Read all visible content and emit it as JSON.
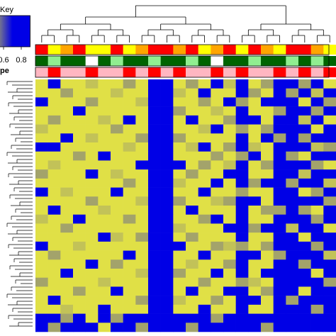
{
  "chart_data": {
    "type": "heatmap",
    "key_title": "Key",
    "legend_title": "pe",
    "zlim": [
      0.2,
      0.9
    ],
    "zticks": [
      0.6,
      0.8
    ],
    "colorscale": [
      [
        0.2,
        "#ffff33"
      ],
      [
        0.5,
        "#a3a36b"
      ],
      [
        0.7,
        "#0000e6"
      ]
    ],
    "column_colors": [
      [
        "#ff0000",
        "#ffff00",
        "#ffa500",
        "#ff0000",
        "#ffff00",
        "#ffff00",
        "#ff0000",
        "#ffff00",
        "#ffa500",
        "#ff0000",
        "#ff0000",
        "#ffa500",
        "#ff0000",
        "#ffff00",
        "#ffa500",
        "#ff0000",
        "#ffff00",
        "#ff0000",
        "#ffa500",
        "#ffff00",
        "#ff0000",
        "#ff0000",
        "#ffa500",
        "#ffff00"
      ],
      [
        "#006400",
        "#90ee90",
        "#006400",
        "#006400",
        "#ffffff",
        "#006400",
        "#90ee90",
        "#006400",
        "#006400",
        "#90ee90",
        "#006400",
        "#006400",
        "#90ee90",
        "#006400",
        "#ffffff",
        "#006400",
        "#006400",
        "#90ee90",
        "#006400",
        "#006400",
        "#90ee90",
        "#006400",
        "#90ee90",
        "#006400"
      ],
      [
        "#ffb6c1",
        "#ff0000",
        "#ffb6c1",
        "#ffb6c1",
        "#ff0000",
        "#ffb6c1",
        "#ffb6c1",
        "#ff0000",
        "#ffb6c1",
        "#ff0000",
        "#ffb6c1",
        "#ff0000",
        "#ffb6c1",
        "#ffb6c1",
        "#ff0000",
        "#ffb6c1",
        "#ff0000",
        "#ffb6c1",
        "#ffb6c1",
        "#ff0000",
        "#ffb6c1",
        "#ff0000",
        "#ffb6c1",
        "#ff0000"
      ]
    ],
    "values": [
      [
        0.3,
        0.8,
        0.3,
        0.3,
        0.4,
        0.3,
        0.3,
        0.5,
        0.3,
        0.8,
        0.8,
        0.3,
        0.5,
        0.3,
        0.8,
        0.4,
        0.8,
        0.3,
        0.5,
        0.8,
        0.8,
        0.5,
        0.8,
        0.3
      ],
      [
        0.3,
        0.3,
        0.5,
        0.3,
        0.3,
        0.3,
        0.4,
        0.3,
        0.3,
        0.8,
        0.8,
        0.4,
        0.3,
        0.8,
        0.3,
        0.3,
        0.8,
        0.5,
        0.3,
        0.8,
        0.5,
        0.8,
        0.4,
        0.8
      ],
      [
        0.8,
        0.3,
        0.3,
        0.3,
        0.5,
        0.3,
        0.3,
        0.3,
        0.4,
        0.8,
        0.8,
        0.3,
        0.3,
        0.5,
        0.3,
        0.8,
        0.5,
        0.3,
        0.8,
        0.8,
        0.8,
        0.3,
        0.8,
        0.5
      ],
      [
        0.3,
        0.3,
        0.3,
        0.8,
        0.3,
        0.3,
        0.3,
        0.3,
        0.3,
        0.8,
        0.7,
        0.5,
        0.3,
        0.3,
        0.4,
        0.3,
        0.8,
        0.3,
        0.3,
        0.5,
        0.8,
        0.8,
        0.5,
        0.8
      ],
      [
        0.3,
        0.5,
        0.3,
        0.3,
        0.3,
        0.4,
        0.3,
        0.8,
        0.3,
        0.8,
        0.8,
        0.3,
        0.8,
        0.3,
        0.3,
        0.5,
        0.8,
        0.8,
        0.3,
        0.8,
        0.8,
        0.4,
        0.8,
        0.3
      ],
      [
        0.4,
        0.3,
        0.3,
        0.3,
        0.3,
        0.3,
        0.5,
        0.3,
        0.3,
        0.8,
        0.8,
        0.3,
        0.3,
        0.4,
        0.8,
        0.3,
        0.5,
        0.3,
        0.5,
        0.8,
        0.7,
        0.8,
        0.3,
        0.8
      ],
      [
        0.3,
        0.3,
        0.8,
        0.3,
        0.4,
        0.3,
        0.3,
        0.3,
        0.5,
        0.8,
        0.8,
        0.5,
        0.3,
        0.3,
        0.3,
        0.3,
        0.8,
        0.3,
        0.8,
        0.5,
        0.8,
        0.5,
        0.8,
        0.8
      ],
      [
        0.8,
        0.8,
        0.3,
        0.3,
        0.3,
        0.3,
        0.3,
        0.4,
        0.3,
        0.7,
        0.8,
        0.3,
        0.4,
        0.8,
        0.3,
        0.5,
        0.8,
        0.4,
        0.3,
        0.8,
        0.8,
        0.8,
        0.4,
        0.5
      ],
      [
        0.3,
        0.3,
        0.3,
        0.5,
        0.3,
        0.8,
        0.3,
        0.3,
        0.3,
        0.8,
        0.8,
        0.3,
        0.3,
        0.3,
        0.5,
        0.3,
        0.5,
        0.8,
        0.3,
        0.8,
        0.5,
        0.3,
        0.8,
        0.8
      ],
      [
        0.3,
        0.4,
        0.3,
        0.3,
        0.3,
        0.3,
        0.3,
        0.3,
        0.8,
        0.8,
        0.8,
        0.8,
        0.3,
        0.5,
        0.3,
        0.4,
        0.8,
        0.3,
        0.5,
        0.8,
        0.8,
        0.8,
        0.5,
        0.3
      ],
      [
        0.5,
        0.3,
        0.3,
        0.3,
        0.8,
        0.3,
        0.4,
        0.3,
        0.3,
        0.8,
        0.8,
        0.3,
        0.5,
        0.3,
        0.3,
        0.8,
        0.8,
        0.3,
        0.3,
        0.7,
        0.8,
        0.4,
        0.8,
        0.8
      ],
      [
        0.3,
        0.3,
        0.3,
        0.3,
        0.3,
        0.3,
        0.3,
        0.5,
        0.3,
        0.8,
        0.8,
        0.4,
        0.3,
        0.3,
        0.8,
        0.3,
        0.8,
        0.5,
        0.8,
        0.8,
        0.5,
        0.8,
        0.8,
        0.4
      ],
      [
        0.8,
        0.3,
        0.4,
        0.3,
        0.3,
        0.3,
        0.8,
        0.3,
        0.3,
        0.8,
        0.7,
        0.3,
        0.3,
        0.8,
        0.3,
        0.3,
        0.5,
        0.3,
        0.3,
        0.8,
        0.8,
        0.3,
        0.5,
        0.8
      ],
      [
        0.3,
        0.3,
        0.3,
        0.3,
        0.5,
        0.3,
        0.3,
        0.3,
        0.4,
        0.8,
        0.8,
        0.5,
        0.3,
        0.3,
        0.4,
        0.5,
        0.8,
        0.8,
        0.3,
        0.8,
        0.8,
        0.8,
        0.8,
        0.5
      ],
      [
        0.3,
        0.8,
        0.3,
        0.3,
        0.3,
        0.4,
        0.3,
        0.3,
        0.3,
        0.8,
        0.8,
        0.3,
        0.8,
        0.3,
        0.3,
        0.3,
        0.8,
        0.3,
        0.5,
        0.5,
        0.8,
        0.5,
        0.3,
        0.8
      ],
      [
        0.4,
        0.3,
        0.3,
        0.8,
        0.3,
        0.3,
        0.3,
        0.5,
        0.3,
        0.8,
        0.8,
        0.3,
        0.3,
        0.5,
        0.8,
        0.3,
        0.7,
        0.3,
        0.3,
        0.8,
        0.8,
        0.8,
        0.5,
        0.8
      ],
      [
        0.3,
        0.3,
        0.5,
        0.3,
        0.3,
        0.3,
        0.3,
        0.3,
        0.3,
        0.8,
        0.8,
        0.4,
        0.3,
        0.3,
        0.3,
        0.8,
        0.8,
        0.5,
        0.8,
        0.8,
        0.4,
        0.8,
        0.8,
        0.3
      ],
      [
        0.3,
        0.3,
        0.3,
        0.3,
        0.3,
        0.8,
        0.4,
        0.3,
        0.5,
        0.8,
        0.8,
        0.3,
        0.5,
        0.3,
        0.3,
        0.3,
        0.8,
        0.3,
        0.3,
        0.8,
        0.8,
        0.3,
        0.8,
        0.8
      ],
      [
        0.8,
        0.3,
        0.3,
        0.4,
        0.3,
        0.3,
        0.3,
        0.3,
        0.3,
        0.7,
        0.8,
        0.8,
        0.3,
        0.3,
        0.5,
        0.4,
        0.5,
        0.3,
        0.5,
        0.8,
        0.8,
        0.8,
        0.5,
        0.8
      ],
      [
        0.3,
        0.5,
        0.3,
        0.3,
        0.3,
        0.3,
        0.3,
        0.8,
        0.3,
        0.8,
        0.8,
        0.3,
        0.3,
        0.8,
        0.3,
        0.3,
        0.8,
        0.8,
        0.3,
        0.5,
        0.8,
        0.8,
        0.8,
        0.4
      ],
      [
        0.3,
        0.3,
        0.3,
        0.3,
        0.8,
        0.3,
        0.5,
        0.3,
        0.3,
        0.8,
        0.8,
        0.3,
        0.4,
        0.3,
        0.3,
        0.5,
        0.8,
        0.3,
        0.3,
        0.8,
        0.8,
        0.5,
        0.8,
        0.8
      ],
      [
        0.3,
        0.3,
        0.8,
        0.3,
        0.3,
        0.3,
        0.3,
        0.3,
        0.4,
        0.8,
        0.8,
        0.5,
        0.3,
        0.3,
        0.8,
        0.3,
        0.8,
        0.3,
        0.8,
        0.8,
        0.7,
        0.8,
        0.3,
        0.8
      ],
      [
        0.5,
        0.3,
        0.3,
        0.3,
        0.3,
        0.4,
        0.3,
        0.3,
        0.3,
        0.8,
        0.8,
        0.3,
        0.3,
        0.5,
        0.3,
        0.3,
        0.5,
        0.4,
        0.3,
        0.8,
        0.8,
        0.8,
        0.8,
        0.5
      ],
      [
        0.3,
        0.3,
        0.3,
        0.5,
        0.3,
        0.3,
        0.8,
        0.3,
        0.3,
        0.8,
        0.8,
        0.3,
        0.8,
        0.3,
        0.3,
        0.8,
        0.8,
        0.3,
        0.5,
        0.8,
        0.8,
        0.3,
        0.8,
        0.8
      ],
      [
        0.3,
        0.8,
        0.3,
        0.3,
        0.3,
        0.3,
        0.3,
        0.3,
        0.5,
        0.8,
        0.7,
        0.4,
        0.3,
        0.3,
        0.5,
        0.3,
        0.8,
        0.8,
        0.3,
        0.8,
        0.5,
        0.8,
        0.8,
        0.8
      ],
      [
        0.3,
        0.3,
        0.4,
        0.3,
        0.3,
        0.8,
        0.3,
        0.3,
        0.3,
        0.8,
        0.8,
        0.3,
        0.3,
        0.8,
        0.3,
        0.3,
        0.8,
        0.3,
        0.3,
        0.8,
        0.8,
        0.8,
        0.5,
        0.8
      ],
      [
        0.8,
        0.8,
        0.5,
        0.8,
        0.3,
        0.8,
        0.5,
        0.8,
        0.8,
        0.8,
        0.8,
        0.8,
        0.8,
        0.8,
        0.5,
        0.8,
        0.8,
        0.8,
        0.8,
        0.8,
        0.8,
        0.8,
        0.8,
        0.8
      ],
      [
        0.8,
        0.5,
        0.8,
        0.8,
        0.8,
        0.3,
        0.8,
        0.8,
        0.5,
        0.8,
        0.8,
        0.8,
        0.5,
        0.8,
        0.8,
        0.8,
        0.8,
        0.8,
        0.5,
        0.8,
        0.8,
        0.8,
        0.8,
        0.8
      ]
    ]
  }
}
